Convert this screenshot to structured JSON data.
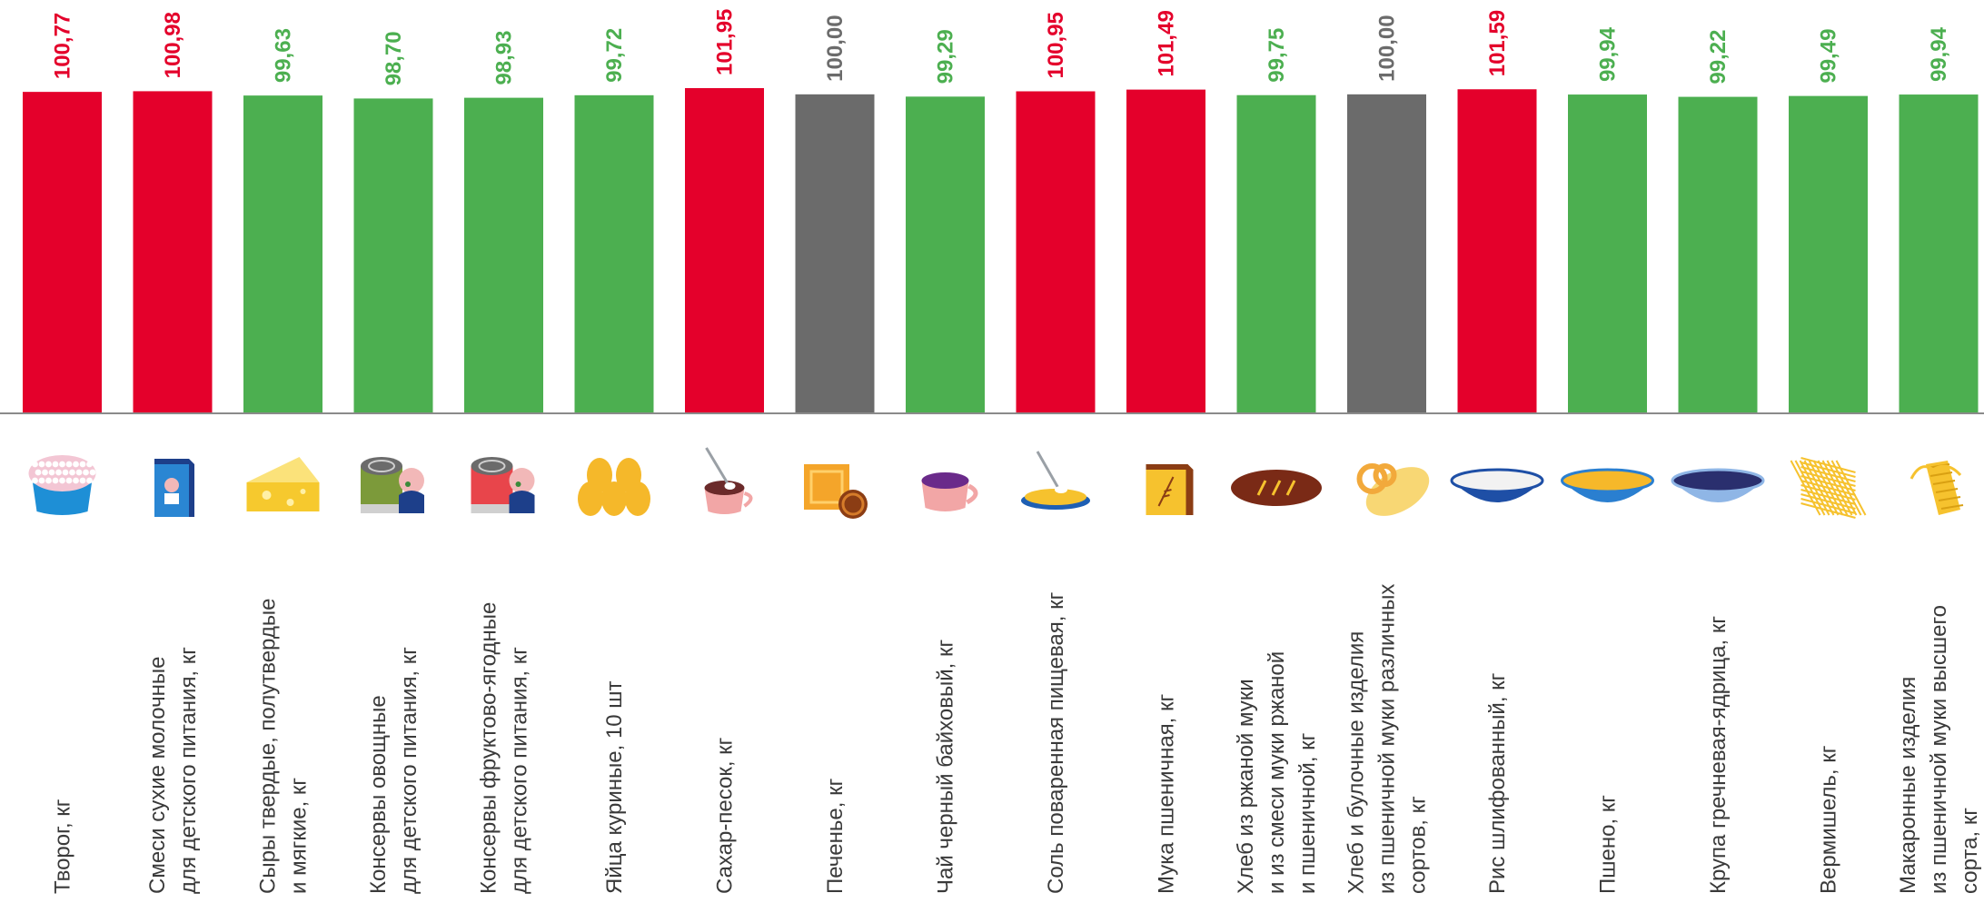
{
  "chart_data": {
    "type": "bar",
    "title": "",
    "xlabel": "",
    "ylabel": "",
    "ylim": [
      0,
      101.95
    ],
    "grid": false,
    "legend": "none",
    "colors": {
      "above": "#e4002b",
      "below": "#4caf50",
      "equal": "#6b6b6b"
    },
    "categories": [
      {
        "lines": [
          "Творог, кг"
        ],
        "value": 100.77,
        "label": "100,77",
        "status": "above",
        "icon": "cottage-cheese-icon"
      },
      {
        "lines": [
          "Смеси сухие молочные",
          "для детского питания, кг"
        ],
        "value": 100.98,
        "label": "100,98",
        "status": "above",
        "icon": "baby-formula-box-icon"
      },
      {
        "lines": [
          "Сыры твердые, полутвердые",
          "и мягкие, кг"
        ],
        "value": 99.63,
        "label": "99,63",
        "status": "below",
        "icon": "cheese-wedge-icon"
      },
      {
        "lines": [
          "Консервы овощные",
          "для детского питания, кг"
        ],
        "value": 98.7,
        "label": "98,70",
        "status": "below",
        "icon": "canned-vegetables-baby-icon"
      },
      {
        "lines": [
          "Консервы фруктово-ягодные",
          "для детского питания, кг"
        ],
        "value": 98.93,
        "label": "98,93",
        "status": "below",
        "icon": "canned-fruit-baby-icon"
      },
      {
        "lines": [
          "Яйца куриные, 10 шт"
        ],
        "value": 99.72,
        "label": "99,72",
        "status": "below",
        "icon": "eggs-icon"
      },
      {
        "lines": [
          "Сахар-песок, кг"
        ],
        "value": 101.95,
        "label": "101,95",
        "status": "above",
        "icon": "sugar-cup-icon"
      },
      {
        "lines": [
          "Печенье, кг"
        ],
        "value": 100.0,
        "label": "100,00",
        "status": "equal",
        "icon": "cookie-icon"
      },
      {
        "lines": [
          "Чай черный байховый, кг"
        ],
        "value": 99.29,
        "label": "99,29",
        "status": "below",
        "icon": "tea-cup-icon"
      },
      {
        "lines": [
          "Соль поваренная пищевая, кг"
        ],
        "value": 100.95,
        "label": "100,95",
        "status": "above",
        "icon": "salt-soup-icon"
      },
      {
        "lines": [
          "Мука пшеничная, кг"
        ],
        "value": 101.49,
        "label": "101,49",
        "status": "above",
        "icon": "flour-bag-icon"
      },
      {
        "lines": [
          "Хлеб из ржаной муки",
          "и из смеси муки ржаной",
          "и пшеничной, кг"
        ],
        "value": 99.75,
        "label": "99,75",
        "status": "below",
        "icon": "rye-bread-icon"
      },
      {
        "lines": [
          "Хлеб и булочные изделия",
          "из пшеничной муки различных",
          "сортов, кг"
        ],
        "value": 100.0,
        "label": "100,00",
        "status": "equal",
        "icon": "pretzel-loaf-icon"
      },
      {
        "lines": [
          "Рис шлифованный, кг"
        ],
        "value": 101.59,
        "label": "101,59",
        "status": "above",
        "icon": "rice-bowl-icon"
      },
      {
        "lines": [
          "Пшено, кг"
        ],
        "value": 99.94,
        "label": "99,94",
        "status": "below",
        "icon": "millet-bowl-icon"
      },
      {
        "lines": [
          "Крупа гречневая-ядрица, кг"
        ],
        "value": 99.22,
        "label": "99,22",
        "status": "below",
        "icon": "buckwheat-bowl-icon"
      },
      {
        "lines": [
          "Вермишель, кг"
        ],
        "value": 99.49,
        "label": "99,49",
        "status": "below",
        "icon": "vermicelli-icon"
      },
      {
        "lines": [
          "Макаронные изделия",
          "из пшеничной муки высшего",
          "сорта, кг"
        ],
        "value": 99.94,
        "label": "99,94",
        "status": "below",
        "icon": "pasta-icon"
      }
    ]
  }
}
